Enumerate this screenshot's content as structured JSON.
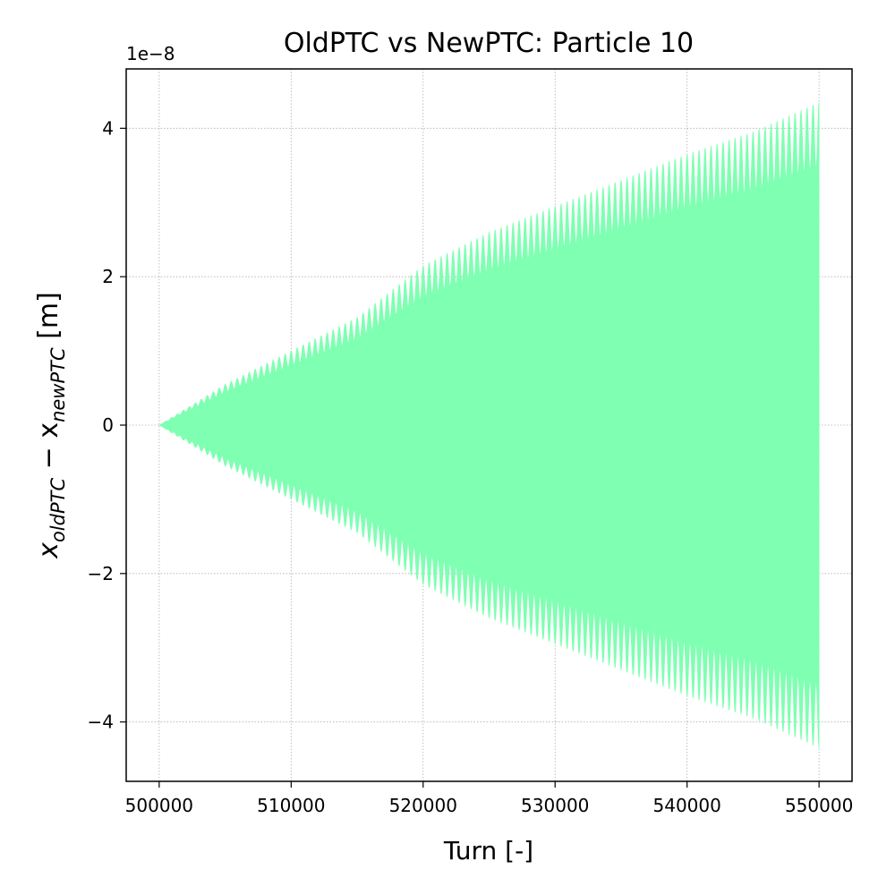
{
  "chart_data": {
    "type": "line",
    "title": "OldPTC vs NewPTC: Particle 10",
    "xlabel": "Turn [-]",
    "ylabel": {
      "main": "x",
      "sub1": "oldPTC",
      "minus": " − x",
      "sub2": "newPTC",
      "unit": " [m]"
    },
    "y_offset_label": "1e−8",
    "xlim": [
      497500,
      552500
    ],
    "ylim": [
      -4.8,
      4.8
    ],
    "y_scale_factor": 1e-08,
    "x_ticks": [
      500000,
      510000,
      520000,
      530000,
      540000,
      550000
    ],
    "x_tick_labels": [
      "500000",
      "510000",
      "520000",
      "530000",
      "540000",
      "550000"
    ],
    "y_ticks": [
      -4,
      -2,
      0,
      2,
      4
    ],
    "y_tick_labels": [
      "−4",
      "−2",
      "0",
      "2",
      "4"
    ],
    "grid": true,
    "series": [
      {
        "color": "#7fffb2",
        "description_points": {
          "x": [
            500000,
            505000,
            510000,
            515000,
            520000,
            525000,
            530000,
            535000,
            540000,
            545000,
            550000
          ],
          "y_upper_envelope": [
            0.0,
            0.55,
            1.0,
            1.45,
            2.15,
            2.6,
            2.95,
            3.3,
            3.65,
            3.95,
            4.35
          ],
          "y_lower_envelope": [
            0.0,
            -0.55,
            -1.0,
            -1.45,
            -2.15,
            -2.6,
            -2.95,
            -3.3,
            -3.65,
            -3.95,
            -4.35
          ],
          "y_inner_peak_at_end": 3.45
        },
        "oscillation_count": 110
      }
    ]
  }
}
